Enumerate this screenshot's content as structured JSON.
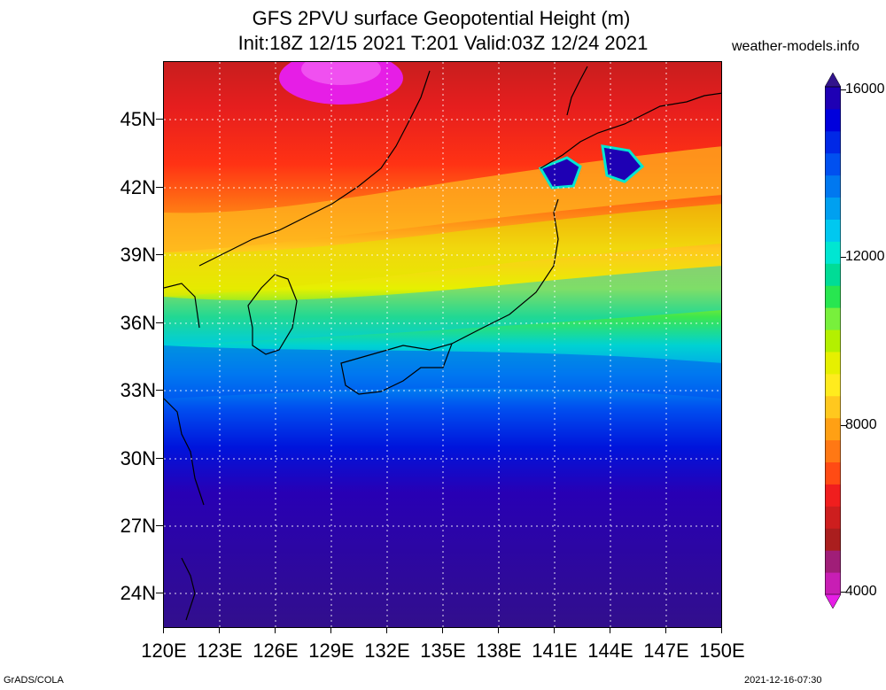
{
  "header": {
    "title_line1": "GFS 2PVU surface Geopotential Height (m)",
    "title_line2": "Init:18Z 12/15 2021 T:201 Valid:03Z 12/24 2021",
    "site": "weather-models.info"
  },
  "axes": {
    "y_labels": [
      "45N",
      "42N",
      "39N",
      "36N",
      "33N",
      "30N",
      "27N",
      "24N"
    ],
    "x_labels": [
      "120E",
      "123E",
      "126E",
      "129E",
      "132E",
      "135E",
      "138E",
      "141E",
      "144E",
      "147E",
      "150E"
    ]
  },
  "colorbar": {
    "labels": [
      "16000",
      "12000",
      "8000",
      "4000"
    ],
    "colors": [
      "#e61ee6",
      "#c81eb4",
      "#a01e78",
      "#aa1e1e",
      "#cd1e1e",
      "#f01e1e",
      "#ff4b14",
      "#ff7814",
      "#ffa014",
      "#ffc81e",
      "#ffeb1e",
      "#e6f000",
      "#b4f000",
      "#78f03c",
      "#28e650",
      "#00dc96",
      "#00e6d2",
      "#00c8f0",
      "#00a0f0",
      "#0078f0",
      "#0050f0",
      "#0028e6",
      "#0000dc",
      "#1e00b4",
      "#32148c"
    ]
  },
  "footer": {
    "left": "GrADS/COLA",
    "right": "2021-12-16-07:30"
  }
}
